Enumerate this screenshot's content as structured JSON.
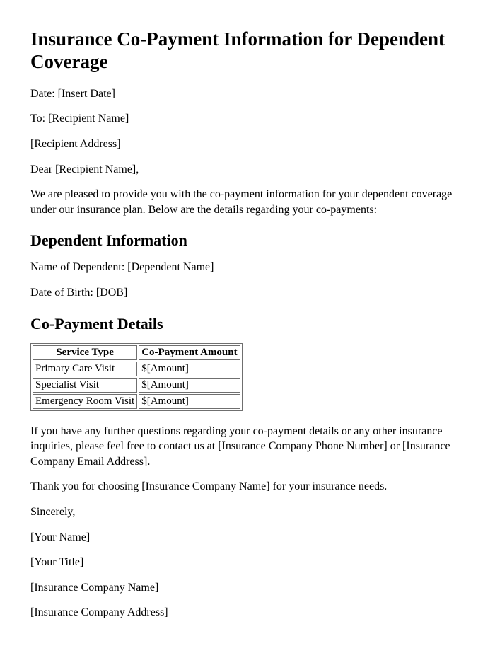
{
  "title": "Insurance Co-Payment Information for Dependent Coverage",
  "date_line": "Date: [Insert Date]",
  "to_line": "To: [Recipient Name]",
  "recipient_address": "[Recipient Address]",
  "salutation": "Dear [Recipient Name],",
  "intro": "We are pleased to provide you with the co-payment information for your dependent coverage under our insurance plan. Below are the details regarding your co-payments:",
  "dep_heading": "Dependent Information",
  "dep_name_line": "Name of Dependent: [Dependent Name]",
  "dep_dob_line": "Date of Birth: [DOB]",
  "copay_heading": "Co-Payment Details",
  "table": {
    "columns": [
      "Service Type",
      "Co-Payment Amount"
    ],
    "rows": [
      [
        "Primary Care Visit",
        "$[Amount]"
      ],
      [
        "Specialist Visit",
        "$[Amount]"
      ],
      [
        "Emergency Room Visit",
        "$[Amount]"
      ]
    ],
    "border_color": "#6f6f6f",
    "header_fontweight": "bold"
  },
  "followup": "If you have any further questions regarding your co-payment details or any other insurance inquiries, please feel free to contact us at [Insurance Company Phone Number] or [Insurance Company Email Address].",
  "thanks": "Thank you for choosing [Insurance Company Name] for your insurance needs.",
  "closing": "Sincerely,",
  "signer_name": "[Your Name]",
  "signer_title": "[Your Title]",
  "company_name": "[Insurance Company Name]",
  "company_address": "[Insurance Company Address]"
}
